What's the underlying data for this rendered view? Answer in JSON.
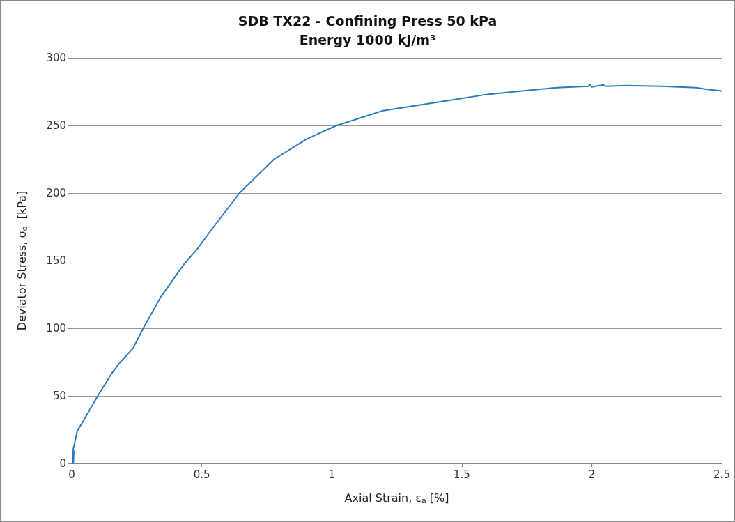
{
  "chart_data": {
    "type": "line",
    "title": "SDB TX22 - Confining Press 50 kPa",
    "subtitle": "Energy 1000 kJ/m³",
    "xlabel": "Axial Strain, ε$_{a}$ [%]",
    "ylabel": "Deviator Stress, σ$_{d}$  [kPa]",
    "series": [
      {
        "color": "#2a7ac0",
        "x": [
          0.003,
          0.003,
          0.006,
          0.008,
          0.005,
          0.021,
          0.04,
          0.07,
          0.1,
          0.155,
          0.187,
          0.235,
          0.275,
          0.342,
          0.43,
          0.484,
          0.53,
          0.645,
          0.778,
          0.904,
          1.019,
          1.198,
          1.465,
          1.599,
          1.759,
          1.866,
          1.987,
          1.992,
          2,
          2.045,
          2.053,
          2.134,
          2.267,
          2.401,
          2.45,
          2.5
        ],
        "values": [
          0,
          9,
          0,
          9,
          10,
          24,
          30,
          40,
          50,
          67,
          75,
          85,
          100,
          123,
          147,
          159,
          171,
          200,
          225,
          240,
          250,
          261,
          269,
          273,
          276,
          278,
          279,
          280.5,
          278.5,
          280,
          279,
          279.5,
          279,
          278,
          276.5,
          275.5
        ]
      }
    ],
    "xlim": [
      0,
      2.5
    ],
    "xticks": [
      0,
      0.5,
      1,
      1.5,
      2,
      2.5
    ],
    "ylim": [
      0,
      300
    ],
    "yticks": [
      0,
      50,
      100,
      150,
      200,
      250,
      300
    ],
    "grid": "y",
    "marker": "none",
    "line_style": "solid"
  }
}
